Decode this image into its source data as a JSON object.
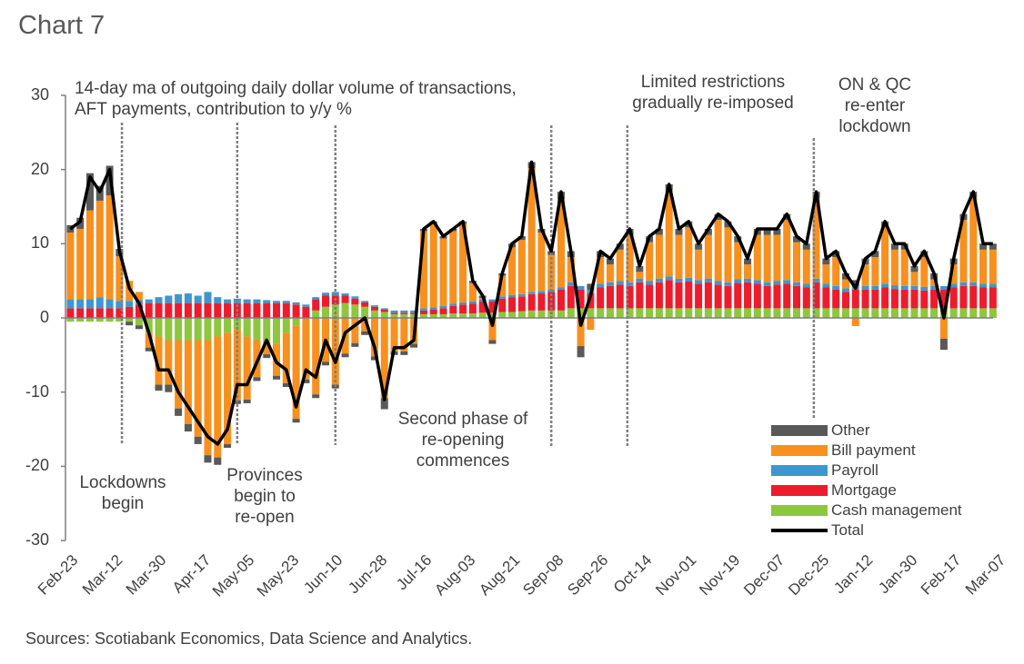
{
  "title": "Chart 7",
  "source": "Sources: Scotiabank Economics, Data Science and Analytics.",
  "chart_data": {
    "type": "bar",
    "stacked": true,
    "title": "14-day ma of outgoing daily dollar volume of transactions, AFT payments, contribution to y/y %",
    "title_lines": [
      "14-day ma of outgoing daily dollar volume of transactions,",
      "AFT payments, contribution to y/y %"
    ],
    "ylim": [
      -30,
      30
    ],
    "y_ticks": [
      "30",
      "20",
      "10",
      "0",
      "-10",
      "-20",
      "-30"
    ],
    "x_tick_labels": [
      "Feb-23",
      "Mar-12",
      "Mar-30",
      "Apr-17",
      "May-05",
      "May-23",
      "Jun-10",
      "Jun-28",
      "Jul-16",
      "Aug-03",
      "Aug-21",
      "Sep-08",
      "Sep-26",
      "Oct-14",
      "Nov-01",
      "Nov-19",
      "Dec-07",
      "Dec-25",
      "Jan-12",
      "Jan-30",
      "Feb-17",
      "Mar-07"
    ],
    "legend_position": "bottom-right",
    "colors": {
      "other": "#595959",
      "bill": "#f7901e",
      "payroll": "#3d97cf",
      "mortgage": "#ec1c2d",
      "cash": "#8dc63f",
      "total": "#000000"
    },
    "legend": [
      "Other",
      "Bill payment",
      "Payroll",
      "Mortgage",
      "Cash management",
      "Total"
    ],
    "annotations": [
      {
        "lines": [
          "Lockdowns",
          "begin"
        ],
        "date": "Mar-17"
      },
      {
        "lines": [
          "Provinces",
          "begin to",
          "re-open"
        ],
        "date": "May-03"
      },
      {
        "lines": [],
        "date": "Jun-12"
      },
      {
        "lines": [
          "Second phase of",
          "re-opening",
          "commences"
        ],
        "date": "Sep-08"
      },
      {
        "lines": [
          "Limited restrictions",
          "gradually re-imposed"
        ],
        "date": "Oct-09"
      },
      {
        "lines": [
          "ON & QC",
          "re-enter",
          "lockdown"
        ],
        "date": "Dec-24"
      }
    ],
    "x": [
      "Feb-23",
      "Feb-27",
      "Mar-02",
      "Mar-06",
      "Mar-10",
      "Mar-14",
      "Mar-18",
      "Mar-22",
      "Mar-26",
      "Mar-30",
      "Apr-03",
      "Apr-07",
      "Apr-11",
      "Apr-15",
      "Apr-19",
      "Apr-23",
      "Apr-27",
      "May-01",
      "May-05",
      "May-09",
      "May-13",
      "May-17",
      "May-21",
      "May-25",
      "May-29",
      "Jun-02",
      "Jun-06",
      "Jun-10",
      "Jun-14",
      "Jun-18",
      "Jun-22",
      "Jun-26",
      "Jun-30",
      "Jul-04",
      "Jul-08",
      "Jul-12",
      "Jul-16",
      "Jul-20",
      "Jul-24",
      "Jul-28",
      "Aug-01",
      "Aug-05",
      "Aug-09",
      "Aug-13",
      "Aug-17",
      "Aug-21",
      "Aug-25",
      "Aug-29",
      "Sep-02",
      "Sep-06",
      "Sep-10",
      "Sep-14",
      "Sep-18",
      "Sep-22",
      "Sep-26",
      "Sep-30",
      "Oct-04",
      "Oct-08",
      "Oct-12",
      "Oct-16",
      "Oct-20",
      "Oct-24",
      "Oct-28",
      "Nov-01",
      "Nov-05",
      "Nov-09",
      "Nov-13",
      "Nov-17",
      "Nov-21",
      "Nov-25",
      "Nov-29",
      "Dec-03",
      "Dec-07",
      "Dec-11",
      "Dec-15",
      "Dec-19",
      "Dec-23",
      "Dec-27",
      "Dec-31",
      "Jan-04",
      "Jan-08",
      "Jan-12",
      "Jan-16",
      "Jan-20",
      "Jan-24",
      "Jan-28",
      "Feb-01",
      "Feb-05",
      "Feb-09",
      "Feb-13",
      "Feb-17",
      "Feb-21",
      "Feb-25",
      "Mar-01",
      "Mar-05"
    ],
    "series": {
      "cash": [
        -0.5,
        -0.5,
        -0.5,
        -0.5,
        -0.5,
        -0.5,
        -0.5,
        -1,
        -2,
        -2.5,
        -3,
        -3,
        -3,
        -3,
        -3,
        -2.5,
        -2,
        -1.5,
        -2.5,
        -3,
        -3.5,
        -3.5,
        -2,
        -1,
        0,
        1,
        1.5,
        1.8,
        2,
        1.8,
        1.5,
        1,
        0.8,
        0.5,
        0.5,
        0.5,
        0.5,
        0.5,
        0.5,
        0.6,
        0.6,
        0.6,
        0.7,
        0.7,
        0.8,
        0.8,
        0.9,
        1,
        1,
        1,
        1,
        1.3,
        1.3,
        1.3,
        1.3,
        1.3,
        1.3,
        1.3,
        1.3,
        1.3,
        1.3,
        1.3,
        1.3,
        1.3,
        1.3,
        1.3,
        1.3,
        1.3,
        1.3,
        1.3,
        1.3,
        1.3,
        1.3,
        1.3,
        1.3,
        1.3,
        1.3,
        1.3,
        1.3,
        1.3,
        1.3,
        1.3,
        1.3,
        1.3,
        1.3,
        1.3,
        1.3,
        1.3,
        1.3,
        1.3,
        1.3,
        1.3,
        1.3,
        1.3,
        1.3
      ],
      "mortgage": [
        1.3,
        1.3,
        1.3,
        1.3,
        1.3,
        1.3,
        1.5,
        1.8,
        2,
        2,
        2,
        2,
        2,
        2,
        2,
        2,
        2,
        2,
        2,
        2,
        2,
        2,
        2,
        1.8,
        1.5,
        1.5,
        1.5,
        1.2,
        1,
        0.8,
        0.6,
        0.5,
        0.3,
        0.2,
        0.2,
        0.2,
        0.5,
        0.6,
        0.8,
        1,
        1.2,
        1.3,
        1.5,
        1.5,
        1.8,
        2,
        2,
        2.2,
        2.3,
        2.5,
        2.8,
        3,
        2.5,
        2,
        2.8,
        3,
        3.2,
        3,
        3.5,
        3.2,
        3.5,
        3.8,
        3.5,
        3.6,
        3.3,
        3.5,
        3.2,
        3,
        3.4,
        3.5,
        3.3,
        3,
        3.2,
        3.3,
        3,
        2.8,
        3.5,
        2.8,
        2.5,
        2.2,
        2.5,
        2.5,
        2.5,
        2.8,
        2.6,
        2.5,
        2.5,
        2.4,
        2.5,
        2.5,
        2.8,
        3,
        3,
        2.8,
        2.8
      ],
      "payroll": [
        1.2,
        1.2,
        1.2,
        1.5,
        1.2,
        1.0,
        0.8,
        0.6,
        0.5,
        0.8,
        1,
        1.2,
        1.3,
        1,
        1.5,
        0.8,
        0.5,
        0.6,
        0.5,
        0.5,
        0.4,
        0.3,
        0.3,
        0.3,
        0.3,
        0.3,
        0.4,
        0.5,
        0.3,
        0.3,
        0.2,
        0.2,
        0.2,
        0.3,
        0.3,
        0.3,
        0.3,
        0.3,
        0.3,
        0.3,
        0.3,
        0.3,
        0.3,
        0.3,
        0.3,
        0.3,
        0.3,
        0.3,
        0.3,
        0.3,
        0.3,
        0.5,
        0.5,
        0.5,
        0.5,
        0.5,
        0.5,
        0.5,
        0.5,
        0.5,
        0.5,
        0.5,
        0.5,
        0.5,
        0.5,
        0.5,
        0.5,
        0.5,
        0.5,
        0.5,
        0.5,
        0.5,
        0.5,
        0.5,
        0.5,
        0.5,
        0.5,
        0.5,
        0.5,
        0.5,
        0.5,
        0.5,
        0.5,
        0.5,
        0.5,
        0.5,
        0.5,
        0.5,
        0.5,
        0.5,
        0.5,
        0.5,
        0.5,
        0.5,
        0.5
      ],
      "bill": [
        9,
        9.5,
        12,
        13,
        14,
        6,
        2.7,
        1.1,
        -2,
        -6.5,
        -6,
        -9.2,
        -11.3,
        -13,
        -15.5,
        -16.3,
        -15,
        -9.6,
        -8.5,
        -5,
        -1.4,
        -4.3,
        -6.8,
        -12.6,
        -8.3,
        -10.3,
        -5.9,
        -9,
        -4.8,
        -3.4,
        -1.8,
        -5.2,
        -10.8,
        -4.5,
        -4.5,
        -3.5,
        10.4,
        11.3,
        9.1,
        9.8,
        10.6,
        2.5,
        0.2,
        -3,
        2.8,
        6.4,
        7.3,
        16.7,
        7.9,
        4.7,
        11.9,
        3.4,
        -3.8,
        -1.6,
        3.6,
        2.4,
        4.2,
        6.4,
        0.9,
        5.2,
        5.9,
        11.6,
        5.9,
        6.8,
        4.1,
        5.9,
        8.2,
        7.4,
        5,
        1.9,
        6.1,
        6.4,
        6.2,
        8.1,
        5.4,
        4.6,
        10.9,
        2.6,
        3.9,
        1.2,
        -1.1,
        2.9,
        3.9,
        7.6,
        4.8,
        4.9,
        1.9,
        4,
        0.9,
        -2.8,
        2.6,
        8.4,
        11.4,
        4.6,
        4.6
      ],
      "other": [
        1,
        1.5,
        5,
        2,
        4,
        1,
        -0.5,
        -0.5,
        -0.5,
        -0.8,
        -1,
        -1,
        -1,
        -1,
        -1,
        -1,
        -0.5,
        -0.5,
        -0.5,
        -0.5,
        -0.5,
        -0.5,
        -0.5,
        -0.5,
        -0.5,
        -0.5,
        -0.5,
        -0.5,
        -0.5,
        -0.5,
        -0.5,
        -0.5,
        -1.5,
        -0.5,
        -0.5,
        -0.5,
        0.3,
        0.3,
        0.3,
        0.3,
        0.3,
        0.3,
        0.3,
        -0.5,
        0.3,
        0.5,
        0.5,
        0.8,
        0.5,
        0.5,
        1,
        0.8,
        -1.5,
        0.8,
        0.8,
        0.8,
        0.8,
        0.8,
        0.8,
        0.8,
        0.8,
        0.8,
        0.8,
        0.8,
        0.8,
        0.8,
        0.8,
        0.8,
        0.8,
        0.8,
        0.8,
        0.8,
        0.8,
        0.8,
        0.8,
        0.8,
        0.8,
        0.8,
        0.8,
        0.8,
        0.8,
        0.8,
        0.8,
        0.8,
        0.8,
        0.8,
        0.8,
        0.8,
        0.8,
        -1.5,
        0.8,
        0.8,
        0.8,
        0.8,
        0.8
      ],
      "total": [
        12,
        13,
        19,
        17,
        20,
        9,
        4,
        2,
        -2,
        -7,
        -7,
        -10,
        -12,
        -14,
        -16,
        -17,
        -15,
        -9,
        -9,
        -6,
        -3,
        -6,
        -7,
        -12,
        -7,
        -8,
        -3,
        -6,
        -2,
        -1,
        0,
        -4,
        -11,
        -4,
        -4,
        -3,
        12,
        13,
        11,
        12,
        13,
        5,
        3,
        -1,
        6,
        10,
        11,
        21,
        12,
        9,
        17,
        9,
        -1,
        3,
        9,
        8,
        10,
        12,
        7,
        11,
        12,
        18,
        12,
        13,
        10,
        12,
        14,
        13,
        11,
        8,
        12,
        12,
        12,
        14,
        11,
        10,
        17,
        8,
        9,
        6,
        4,
        8,
        9,
        13,
        10,
        10,
        7,
        9,
        6,
        0,
        8,
        14,
        17,
        10,
        10
      ]
    }
  }
}
